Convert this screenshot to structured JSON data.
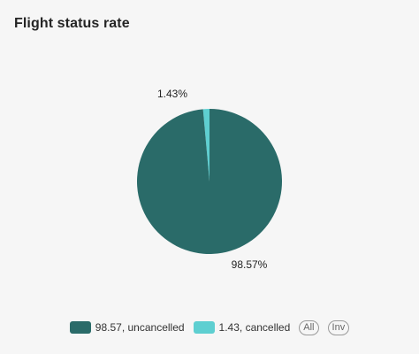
{
  "title": "Flight status rate",
  "colors": {
    "uncancelled": "#2a6b69",
    "cancelled": "#5ecfd1",
    "background": "#f6f6f6"
  },
  "chart_data": {
    "type": "pie",
    "title": "Flight status rate",
    "slices": [
      {
        "label": "uncancelled",
        "value": 98.57,
        "display": "98.57%",
        "legend": "98.57, uncancelled",
        "color": "#2a6b69"
      },
      {
        "label": "cancelled",
        "value": 1.43,
        "display": "1.43%",
        "legend": "1.43, cancelled",
        "color": "#5ecfd1"
      }
    ],
    "legend_position": "bottom"
  },
  "legend": {
    "all_label": "All",
    "inv_label": "Inv"
  }
}
